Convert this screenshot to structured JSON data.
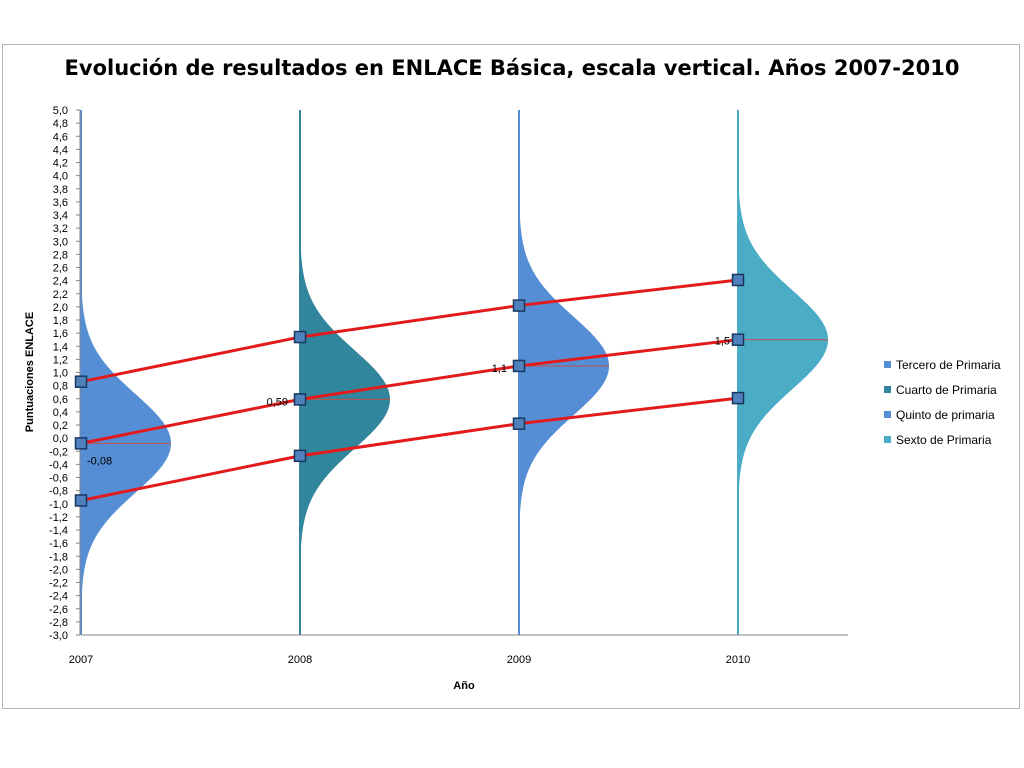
{
  "chart_data": {
    "type": "area",
    "title": "Evolución de resultados en ENLACE Básica, escala vertical. Años 2007-2010",
    "xlabel": "Año",
    "ylabel": "Puntuaciones ENLACE",
    "ylim": [
      -3.0,
      5.0
    ],
    "ytick_step": 0.2,
    "grid": false,
    "legend_position": "right",
    "x_categories": [
      "2007",
      "2008",
      "2009",
      "2010"
    ],
    "series": [
      {
        "name": "Tercero de Primaria",
        "year": "2007",
        "mean": -0.08,
        "color": "#558ed5"
      },
      {
        "name": "Cuarto de Primaria",
        "year": "2008",
        "mean": 0.59,
        "color": "#31859c"
      },
      {
        "name": "Quinto de primaria",
        "year": "2009",
        "mean": 1.1,
        "color": "#558ed5"
      },
      {
        "name": "Sexto de Primaria",
        "year": "2010",
        "mean": 1.5,
        "color": "#4bacc6"
      }
    ],
    "mean_labels": [
      "-0,08",
      "0,59",
      "1,1",
      "1,5"
    ],
    "trend_lines": [
      {
        "values": [
          0.86,
          1.54,
          2.02,
          2.41
        ]
      },
      {
        "values": [
          -0.08,
          0.59,
          1.1,
          1.5
        ]
      },
      {
        "values": [
          -0.95,
          -0.27,
          0.22,
          0.61
        ]
      }
    ],
    "line_color": "#e31a1c",
    "marker_color": "#4f81bd"
  }
}
